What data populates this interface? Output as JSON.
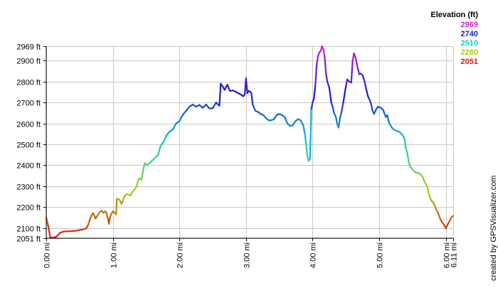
{
  "chart_data": {
    "type": "line",
    "xlabel": "",
    "ylabel": "",
    "xlim": [
      0,
      6.11
    ],
    "ylim": [
      2051,
      2969
    ],
    "x_unit": "mi",
    "y_unit": "ft",
    "grid": true,
    "y_ticks": [
      {
        "value": 2969,
        "label": "2969 ft"
      },
      {
        "value": 2900,
        "label": "2900 ft"
      },
      {
        "value": 2800,
        "label": "2800 ft"
      },
      {
        "value": 2700,
        "label": "2700 ft"
      },
      {
        "value": 2600,
        "label": "2600 ft"
      },
      {
        "value": 2500,
        "label": "2500 ft"
      },
      {
        "value": 2400,
        "label": "2400 ft"
      },
      {
        "value": 2300,
        "label": "2300 ft"
      },
      {
        "value": 2200,
        "label": "2200 ft"
      },
      {
        "value": 2100,
        "label": "2100 ft"
      },
      {
        "value": 2051,
        "label": "2051 ft"
      }
    ],
    "x_ticks": [
      {
        "value": 0,
        "label": "0.00 mi"
      },
      {
        "value": 1,
        "label": "1.00 mi"
      },
      {
        "value": 2,
        "label": "2.00 mi"
      },
      {
        "value": 3,
        "label": "3.00 mi"
      },
      {
        "value": 4,
        "label": "4.00 mi"
      },
      {
        "value": 5,
        "label": "5.00 mi"
      },
      {
        "value": 6,
        "label": "6.00 mi"
      },
      {
        "value": 6.11,
        "label": "6.11 mi"
      }
    ],
    "legend": {
      "title": "Elevation (ft)",
      "position": "top-right",
      "items": [
        {
          "label": "2969",
          "value": 2969,
          "color": "#cc22cc"
        },
        {
          "label": "2740",
          "value": 2740,
          "color": "#1a1acc"
        },
        {
          "label": "2510",
          "value": 2510,
          "color": "#11cccc"
        },
        {
          "label": "2280",
          "value": 2280,
          "color": "#aacc11"
        },
        {
          "label": "2051",
          "value": 2051,
          "color": "#dd1111"
        }
      ]
    },
    "credit": "created by GPSVisualizer.com",
    "series": [
      {
        "color_by": "elevation",
        "points": [
          [
            0.0,
            2149
          ],
          [
            0.03,
            2110
          ],
          [
            0.06,
            2054
          ],
          [
            0.1,
            2053
          ],
          [
            0.15,
            2058
          ],
          [
            0.2,
            2075
          ],
          [
            0.25,
            2082
          ],
          [
            0.3,
            2084
          ],
          [
            0.4,
            2085
          ],
          [
            0.45,
            2087
          ],
          [
            0.5,
            2090
          ],
          [
            0.55,
            2093
          ],
          [
            0.6,
            2098
          ],
          [
            0.63,
            2115
          ],
          [
            0.66,
            2145
          ],
          [
            0.68,
            2160
          ],
          [
            0.7,
            2172
          ],
          [
            0.72,
            2160
          ],
          [
            0.74,
            2145
          ],
          [
            0.76,
            2155
          ],
          [
            0.8,
            2175
          ],
          [
            0.83,
            2183
          ],
          [
            0.86,
            2172
          ],
          [
            0.88,
            2180
          ],
          [
            0.9,
            2175
          ],
          [
            0.93,
            2140
          ],
          [
            0.94,
            2120
          ],
          [
            0.96,
            2155
          ],
          [
            1.0,
            2180
          ],
          [
            1.02,
            2175
          ],
          [
            1.05,
            2165
          ],
          [
            1.06,
            2240
          ],
          [
            1.1,
            2235
          ],
          [
            1.13,
            2215
          ],
          [
            1.15,
            2230
          ],
          [
            1.18,
            2255
          ],
          [
            1.22,
            2262
          ],
          [
            1.26,
            2255
          ],
          [
            1.3,
            2275
          ],
          [
            1.33,
            2285
          ],
          [
            1.36,
            2300
          ],
          [
            1.38,
            2330
          ],
          [
            1.4,
            2338
          ],
          [
            1.43,
            2330
          ],
          [
            1.46,
            2385
          ],
          [
            1.48,
            2410
          ],
          [
            1.52,
            2400
          ],
          [
            1.55,
            2410
          ],
          [
            1.6,
            2425
          ],
          [
            1.65,
            2440
          ],
          [
            1.68,
            2450
          ],
          [
            1.72,
            2495
          ],
          [
            1.76,
            2510
          ],
          [
            1.8,
            2540
          ],
          [
            1.85,
            2560
          ],
          [
            1.9,
            2570
          ],
          [
            1.95,
            2600
          ],
          [
            2.0,
            2610
          ],
          [
            2.03,
            2630
          ],
          [
            2.06,
            2645
          ],
          [
            2.1,
            2660
          ],
          [
            2.15,
            2680
          ],
          [
            2.2,
            2690
          ],
          [
            2.25,
            2680
          ],
          [
            2.3,
            2688
          ],
          [
            2.35,
            2675
          ],
          [
            2.4,
            2690
          ],
          [
            2.45,
            2672
          ],
          [
            2.5,
            2672
          ],
          [
            2.55,
            2700
          ],
          [
            2.58,
            2690
          ],
          [
            2.6,
            2685
          ],
          [
            2.62,
            2790
          ],
          [
            2.64,
            2782
          ],
          [
            2.66,
            2770
          ],
          [
            2.68,
            2760
          ],
          [
            2.7,
            2775
          ],
          [
            2.72,
            2785
          ],
          [
            2.74,
            2768
          ],
          [
            2.76,
            2755
          ],
          [
            2.8,
            2758
          ],
          [
            2.84,
            2752
          ],
          [
            2.88,
            2745
          ],
          [
            2.92,
            2738
          ],
          [
            2.96,
            2730
          ],
          [
            2.98,
            2738
          ],
          [
            3.0,
            2815
          ],
          [
            3.02,
            2745
          ],
          [
            3.04,
            2755
          ],
          [
            3.06,
            2752
          ],
          [
            3.08,
            2745
          ],
          [
            3.1,
            2690
          ],
          [
            3.14,
            2660
          ],
          [
            3.18,
            2655
          ],
          [
            3.22,
            2645
          ],
          [
            3.26,
            2640
          ],
          [
            3.3,
            2625
          ],
          [
            3.34,
            2615
          ],
          [
            3.38,
            2615
          ],
          [
            3.42,
            2620
          ],
          [
            3.46,
            2640
          ],
          [
            3.5,
            2645
          ],
          [
            3.54,
            2640
          ],
          [
            3.58,
            2630
          ],
          [
            3.62,
            2600
          ],
          [
            3.66,
            2588
          ],
          [
            3.7,
            2590
          ],
          [
            3.74,
            2610
          ],
          [
            3.78,
            2620
          ],
          [
            3.82,
            2615
          ],
          [
            3.86,
            2590
          ],
          [
            3.88,
            2555
          ],
          [
            3.9,
            2510
          ],
          [
            3.92,
            2445
          ],
          [
            3.94,
            2420
          ],
          [
            3.96,
            2430
          ],
          [
            3.98,
            2670
          ],
          [
            4.0,
            2700
          ],
          [
            4.02,
            2720
          ],
          [
            4.04,
            2780
          ],
          [
            4.06,
            2880
          ],
          [
            4.08,
            2920
          ],
          [
            4.1,
            2940
          ],
          [
            4.12,
            2945
          ],
          [
            4.14,
            2969
          ],
          [
            4.16,
            2955
          ],
          [
            4.18,
            2920
          ],
          [
            4.2,
            2840
          ],
          [
            4.22,
            2800
          ],
          [
            4.25,
            2770
          ],
          [
            4.28,
            2700
          ],
          [
            4.3,
            2680
          ],
          [
            4.32,
            2650
          ],
          [
            4.35,
            2630
          ],
          [
            4.37,
            2595
          ],
          [
            4.39,
            2580
          ],
          [
            4.41,
            2625
          ],
          [
            4.43,
            2650
          ],
          [
            4.46,
            2700
          ],
          [
            4.5,
            2780
          ],
          [
            4.52,
            2810
          ],
          [
            4.55,
            2800
          ],
          [
            4.58,
            2795
          ],
          [
            4.6,
            2900
          ],
          [
            4.62,
            2935
          ],
          [
            4.64,
            2920
          ],
          [
            4.66,
            2890
          ],
          [
            4.68,
            2860
          ],
          [
            4.7,
            2835
          ],
          [
            4.72,
            2838
          ],
          [
            4.75,
            2830
          ],
          [
            4.78,
            2800
          ],
          [
            4.8,
            2770
          ],
          [
            4.83,
            2730
          ],
          [
            4.86,
            2710
          ],
          [
            4.88,
            2690
          ],
          [
            4.9,
            2660
          ],
          [
            4.92,
            2645
          ],
          [
            4.95,
            2665
          ],
          [
            4.98,
            2680
          ],
          [
            5.02,
            2675
          ],
          [
            5.06,
            2665
          ],
          [
            5.08,
            2645
          ],
          [
            5.1,
            2630
          ],
          [
            5.12,
            2640
          ],
          [
            5.15,
            2600
          ],
          [
            5.2,
            2575
          ],
          [
            5.25,
            2565
          ],
          [
            5.3,
            2560
          ],
          [
            5.35,
            2545
          ],
          [
            5.38,
            2525
          ],
          [
            5.4,
            2480
          ],
          [
            5.42,
            2460
          ],
          [
            5.44,
            2420
          ],
          [
            5.46,
            2395
          ],
          [
            5.5,
            2380
          ],
          [
            5.55,
            2365
          ],
          [
            5.6,
            2362
          ],
          [
            5.65,
            2345
          ],
          [
            5.68,
            2320
          ],
          [
            5.72,
            2300
          ],
          [
            5.75,
            2255
          ],
          [
            5.78,
            2232
          ],
          [
            5.82,
            2218
          ],
          [
            5.85,
            2192
          ],
          [
            5.88,
            2175
          ],
          [
            5.92,
            2140
          ],
          [
            5.95,
            2125
          ],
          [
            5.98,
            2112
          ],
          [
            6.0,
            2098
          ],
          [
            6.03,
            2118
          ],
          [
            6.06,
            2135
          ],
          [
            6.08,
            2150
          ],
          [
            6.11,
            2158
          ]
        ]
      }
    ]
  }
}
